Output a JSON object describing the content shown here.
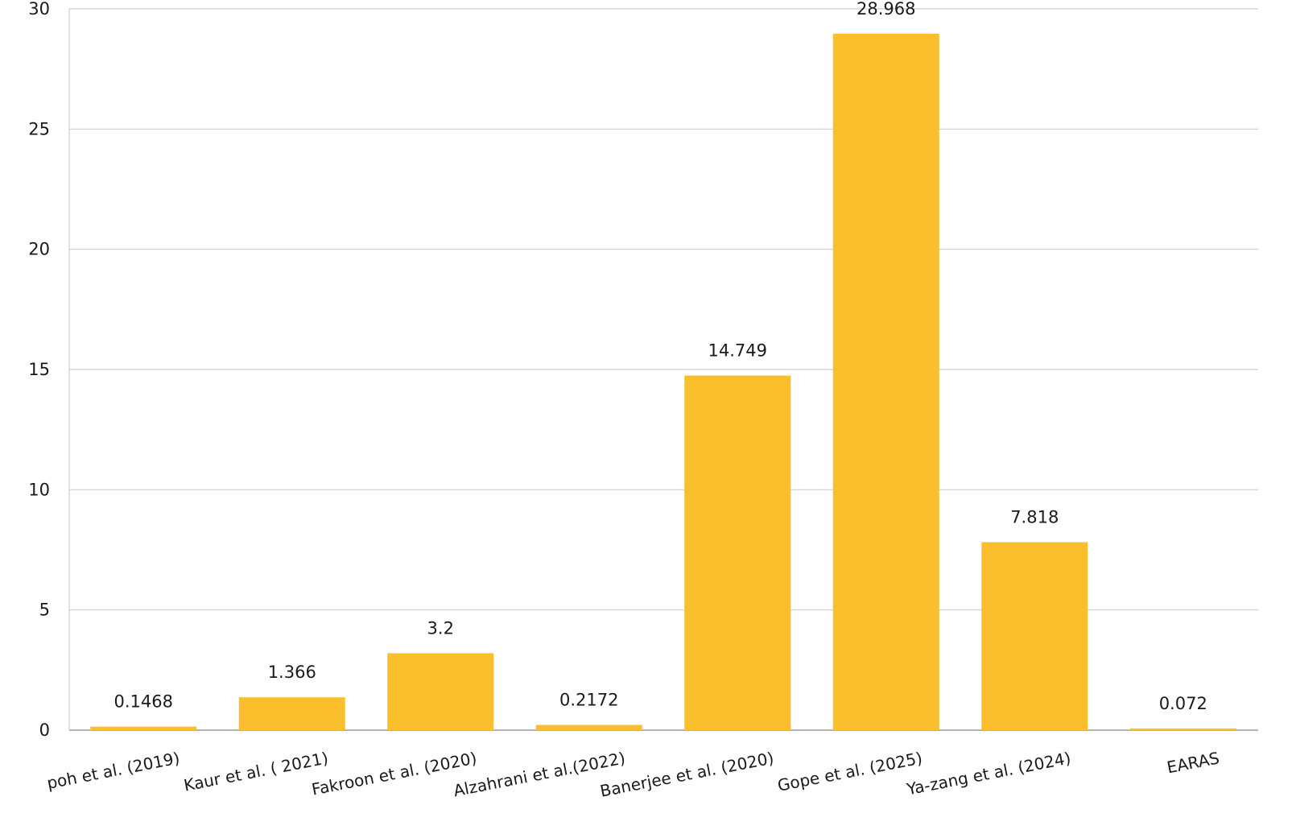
{
  "chart_data": {
    "type": "bar",
    "title": "",
    "xlabel": "",
    "ylabel": "",
    "categories": [
      "poh et al. (2019)",
      "Kaur et al. ( 2021)",
      "Fakroon et al. (2020)",
      "Alzahrani et al.(2022)",
      "Banerjee et al. (2020)",
      "Gope et al. (2025)",
      "Ya-zang et al. (2024)",
      "EARAS"
    ],
    "values": [
      0.1468,
      1.366,
      3.2,
      0.2172,
      14.749,
      28.968,
      7.818,
      0.072
    ],
    "data_labels": [
      "0.1468",
      "1.366",
      "3.2",
      "0.2172",
      "14.749",
      "28.968",
      "7.818",
      "0.072"
    ],
    "ylim": [
      0,
      30
    ],
    "yticks": [
      0,
      5,
      10,
      15,
      20,
      25,
      30
    ],
    "ytick_labels": [
      "0",
      "5",
      "10",
      "15",
      "20",
      "25",
      "30"
    ],
    "grid": true,
    "legend": "none",
    "colors": {
      "bar": "#FBBF2E",
      "grid": "#cfcfcf",
      "axis": "#9a9a9a"
    }
  }
}
